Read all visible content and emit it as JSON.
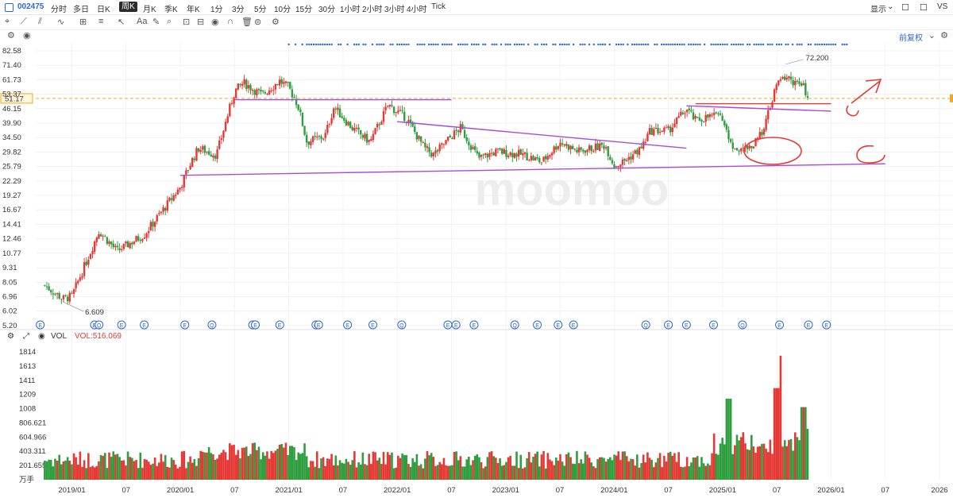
{
  "toolbar": {
    "ticker": "002475",
    "timeframes": [
      "分时",
      "多日",
      "日K",
      "周K",
      "月K",
      "季K",
      "年K",
      "1分",
      "3分",
      "5分",
      "10分",
      "15分",
      "30分",
      "1小时",
      "2小时",
      "3小时",
      "4小时",
      "Tick"
    ],
    "active_timeframe": "周K",
    "display_label": "显示",
    "vs_label": "VS"
  },
  "subbar": {
    "adjust_label": "前复权"
  },
  "volume": {
    "label": "VOL",
    "value_label": "VOL:516.069"
  },
  "colors": {
    "up": "#e53935",
    "down": "#2e9e3e",
    "trend": "#a64cd6",
    "annot": "#e53935",
    "price_line": "#f5a623",
    "accent": "#2c68d8"
  },
  "chart_data": {
    "type": "candlestick",
    "watermark": "moomoo",
    "y_log_scale": true,
    "y_tick_labels": [
      "82.58",
      "71.40",
      "61.73",
      "53.37",
      "46.15",
      "39.90",
      "34.50",
      "29.82",
      "25.79",
      "22.29",
      "19.27",
      "16.67",
      "14.41",
      "12.46",
      "10.77",
      "9.31",
      "8.05",
      "6.96",
      "6.02",
      "5.20"
    ],
    "x_tick_labels": [
      "2019/01",
      "07",
      "2020/01",
      "07",
      "2021/01",
      "07",
      "2022/01",
      "07",
      "2023/01",
      "07",
      "2024/01",
      "07",
      "2025/01",
      "07",
      "2026/01",
      "07",
      "2026"
    ],
    "current_price_label": "51.17",
    "high_label": "72.200",
    "low_label": "6.609",
    "weekly_close_anchors": [
      [
        "2018/10",
        7.8
      ],
      [
        "2018/12",
        6.8
      ],
      [
        "2019/01",
        7.0
      ],
      [
        "2019/03",
        10.8
      ],
      [
        "2019/04",
        13.5
      ],
      [
        "2019/06",
        11.0
      ],
      [
        "2019/09",
        13.0
      ],
      [
        "2019/11",
        16.5
      ],
      [
        "2020/01",
        21.0
      ],
      [
        "2020/02",
        26.0
      ],
      [
        "2020/03",
        31.0
      ],
      [
        "2020/05",
        29.0
      ],
      [
        "2020/06",
        40.0
      ],
      [
        "2020/07",
        55.0
      ],
      [
        "2020/08",
        60.0
      ],
      [
        "2020/10",
        53.0
      ],
      [
        "2020/12",
        61.0
      ],
      [
        "2021/01",
        57.0
      ],
      [
        "2021/02",
        48.0
      ],
      [
        "2021/03",
        33.0
      ],
      [
        "2021/05",
        35.0
      ],
      [
        "2021/06",
        47.0
      ],
      [
        "2021/08",
        38.0
      ],
      [
        "2021/10",
        33.0
      ],
      [
        "2021/12",
        48.0
      ],
      [
        "2022/02",
        42.0
      ],
      [
        "2022/04",
        31.0
      ],
      [
        "2022/05",
        29.0
      ],
      [
        "2022/07",
        35.0
      ],
      [
        "2022/08",
        38.0
      ],
      [
        "2022/10",
        28.0
      ],
      [
        "2022/12",
        30.0
      ],
      [
        "2023/03",
        29.0
      ],
      [
        "2023/05",
        27.0
      ],
      [
        "2023/07",
        33.0
      ],
      [
        "2023/09",
        30.0
      ],
      [
        "2023/12",
        32.0
      ],
      [
        "2024/01",
        26.0
      ],
      [
        "2024/02",
        27.0
      ],
      [
        "2024/04",
        31.0
      ],
      [
        "2024/05",
        37.0
      ],
      [
        "2024/07",
        37.0
      ],
      [
        "2024/09",
        46.0
      ],
      [
        "2024/10",
        41.0
      ],
      [
        "2024/12",
        43.0
      ],
      [
        "2025/01",
        42.0
      ],
      [
        "2025/02",
        31.0
      ],
      [
        "2025/04",
        31.0
      ],
      [
        "2025/05",
        34.0
      ],
      [
        "2025/06",
        43.0
      ],
      [
        "2025/07",
        59.0
      ],
      [
        "2025/08",
        64.0
      ],
      [
        "2025/09",
        60.0
      ],
      [
        "2025/10",
        57.0
      ],
      [
        "2025/10b",
        51.17
      ]
    ],
    "volume_y_tick_labels": [
      "1814",
      "1613",
      "1411",
      "1209",
      "1008",
      "806.621",
      "604.966",
      "403.311",
      "201.655",
      "万手"
    ],
    "volume_y_max": 1814,
    "annotations": {
      "trend_lines": [
        "support",
        "upper_resistance",
        "descending_resistance",
        "recent_range"
      ],
      "handdrawn": [
        "circle_consolidation",
        "circle_breakout_retest",
        "upward_arrow",
        "open_circle_target"
      ]
    }
  }
}
